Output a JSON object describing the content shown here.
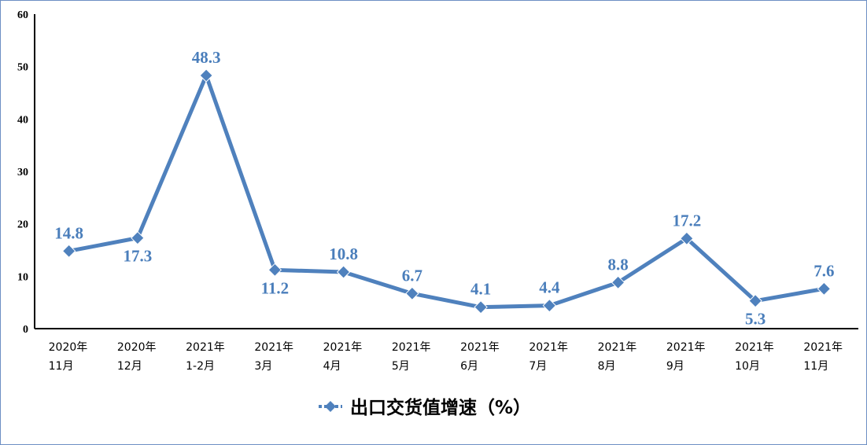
{
  "chart_data": {
    "type": "line",
    "title": "",
    "xlabel": "",
    "ylabel": "",
    "ylim": [
      0,
      60
    ],
    "yticks": [
      0,
      10,
      20,
      30,
      40,
      50,
      60
    ],
    "grid": false,
    "legend_position": "bottom",
    "categories": [
      [
        "2020年",
        "11月"
      ],
      [
        "2020年",
        "12月"
      ],
      [
        "2021年",
        "1-2月"
      ],
      [
        "2021年",
        "3月"
      ],
      [
        "2021年",
        "4月"
      ],
      [
        "2021年",
        "5月"
      ],
      [
        "2021年",
        "6月"
      ],
      [
        "2021年",
        "7月"
      ],
      [
        "2021年",
        "8月"
      ],
      [
        "2021年",
        "9月"
      ],
      [
        "2021年",
        "10月"
      ],
      [
        "2021年",
        "11月"
      ]
    ],
    "series": [
      {
        "name": "出口交货值增速（%）",
        "color": "#4f81bd",
        "marker": "diamond",
        "values": [
          14.8,
          17.3,
          48.3,
          11.2,
          10.8,
          6.7,
          4.1,
          4.4,
          8.8,
          17.2,
          5.3,
          7.6
        ],
        "data_labels": [
          "14.8",
          "17.3",
          "48.3",
          "11.2",
          "10.8",
          "6.7",
          "4.1",
          "4.4",
          "8.8",
          "17.2",
          "5.3",
          "7.6"
        ],
        "label_positions": [
          "above",
          "below",
          "above",
          "below",
          "above",
          "above",
          "above",
          "above",
          "above",
          "above",
          "below",
          "above"
        ]
      }
    ]
  }
}
